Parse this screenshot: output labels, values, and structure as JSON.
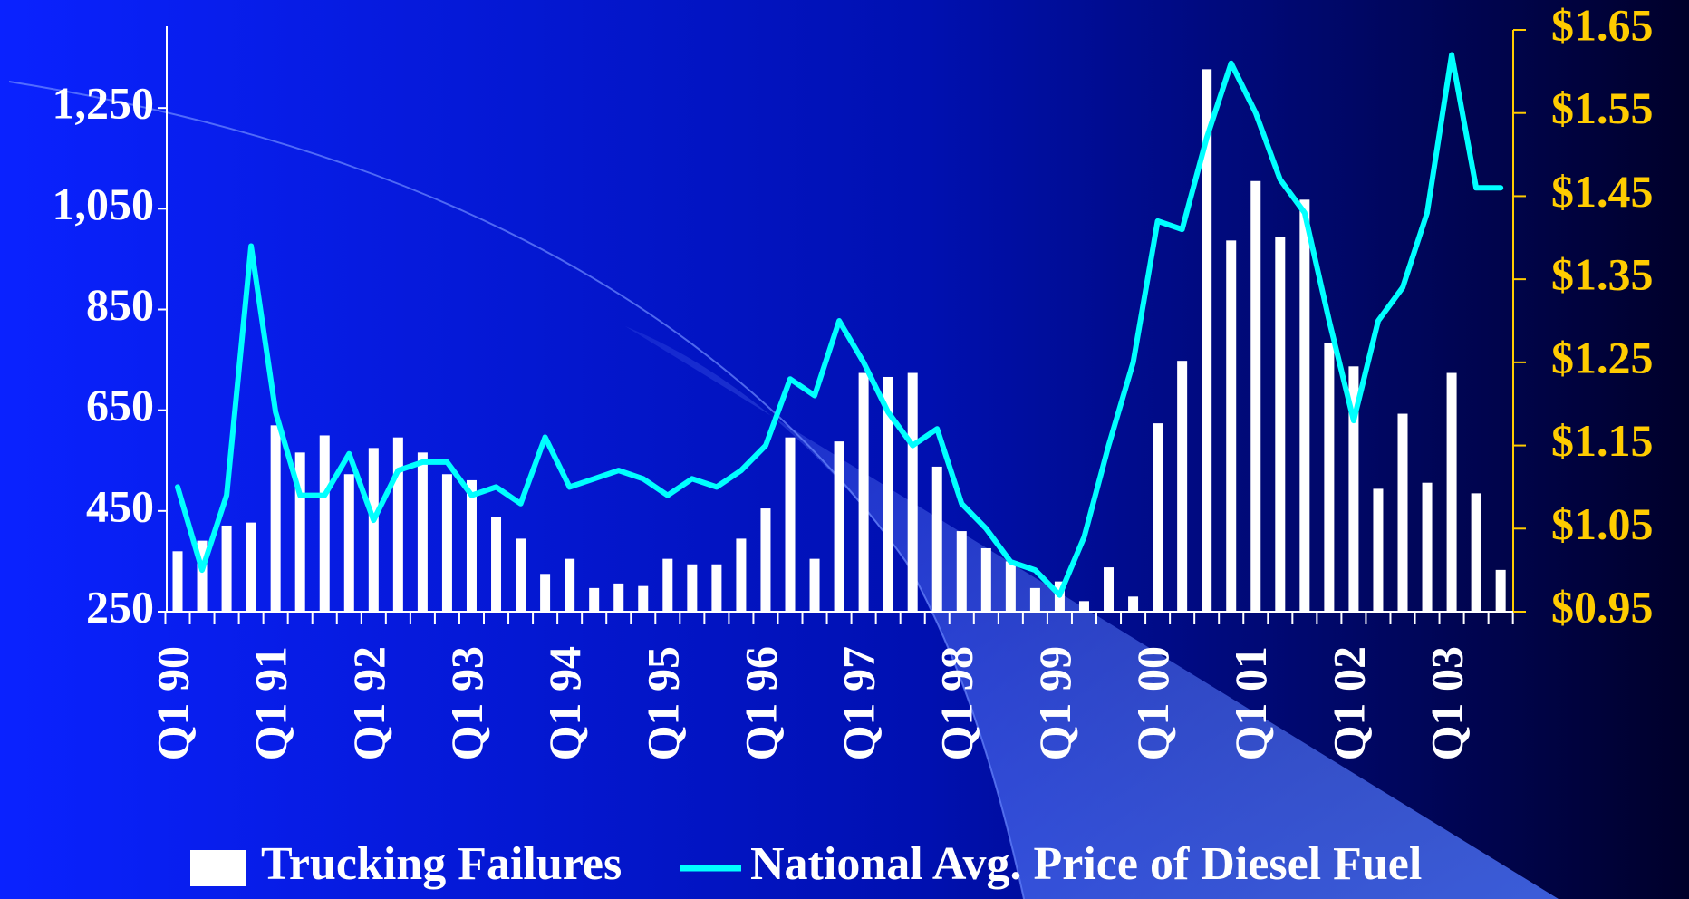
{
  "chart_data": {
    "type": "bar-line",
    "categories": [
      "Q1 90",
      null,
      null,
      null,
      "Q1 91",
      null,
      null,
      null,
      "Q1 92",
      null,
      null,
      null,
      "Q1 93",
      null,
      null,
      null,
      "Q1 94",
      null,
      null,
      null,
      "Q1 95",
      null,
      null,
      null,
      "Q1 96",
      null,
      null,
      null,
      "Q1 97",
      null,
      null,
      null,
      "Q1 98",
      null,
      null,
      null,
      "Q1 99",
      null,
      null,
      null,
      "Q1 00",
      null,
      null,
      null,
      "Q1 01",
      null,
      null,
      null,
      "Q1 02",
      null,
      null,
      null,
      "Q1 03",
      null,
      null
    ],
    "series": [
      {
        "name": "Trucking Failures",
        "type": "bar",
        "color": "#ffffff",
        "axis": "y",
        "values": [
          370,
          391,
          421,
          427,
          620,
          566,
          600,
          523,
          575,
          596,
          566,
          523,
          511,
          438,
          395,
          325,
          355,
          297,
          306,
          301,
          355,
          344,
          344,
          395,
          455,
          596,
          355,
          588,
          724,
          716,
          724,
          538,
          410,
          376,
          350,
          297,
          310,
          271,
          338,
          280,
          624,
          748,
          1327,
          987,
          1105,
          994,
          1068,
          784,
          737,
          494,
          643,
          506,
          724,
          485,
          333
        ]
      },
      {
        "name": "National Avg. Price of Diesel Fuel",
        "type": "line",
        "color": "#00ffff",
        "axis": "y2",
        "values": [
          1.1,
          1.0,
          1.09,
          1.39,
          1.19,
          1.09,
          1.09,
          1.14,
          1.06,
          1.12,
          1.13,
          1.13,
          1.09,
          1.1,
          1.08,
          1.16,
          1.1,
          1.11,
          1.12,
          1.11,
          1.09,
          1.11,
          1.1,
          1.12,
          1.15,
          1.23,
          1.21,
          1.3,
          1.25,
          1.19,
          1.15,
          1.17,
          1.08,
          1.05,
          1.01,
          1.0,
          0.97,
          1.04,
          1.15,
          1.25,
          1.42,
          1.41,
          1.52,
          1.61,
          1.55,
          1.47,
          1.43,
          1.3,
          1.18,
          1.3,
          1.34,
          1.43,
          1.62,
          1.46,
          1.46
        ]
      }
    ],
    "ylim": [
      250,
      1405
    ],
    "yticks": [
      250,
      450,
      650,
      850,
      {
        "value": 1050,
        "label": "1,050"
      },
      {
        "value": 1250,
        "label": "1,250"
      }
    ],
    "y2lim": [
      0.95,
      1.65
    ],
    "y2ticks": [
      {
        "value": 0.95,
        "label": "$0.95"
      },
      {
        "value": 1.05,
        "label": "$1.05"
      },
      {
        "value": 1.15,
        "label": "$1.15"
      },
      {
        "value": 1.25,
        "label": "$1.25"
      },
      {
        "value": 1.35,
        "label": "$1.35"
      },
      {
        "value": 1.45,
        "label": "$1.45"
      },
      {
        "value": 1.55,
        "label": "$1.55"
      },
      {
        "value": 1.65,
        "label": "$1.65"
      }
    ],
    "y2color": "#ffcc00",
    "legend": "bottom"
  }
}
